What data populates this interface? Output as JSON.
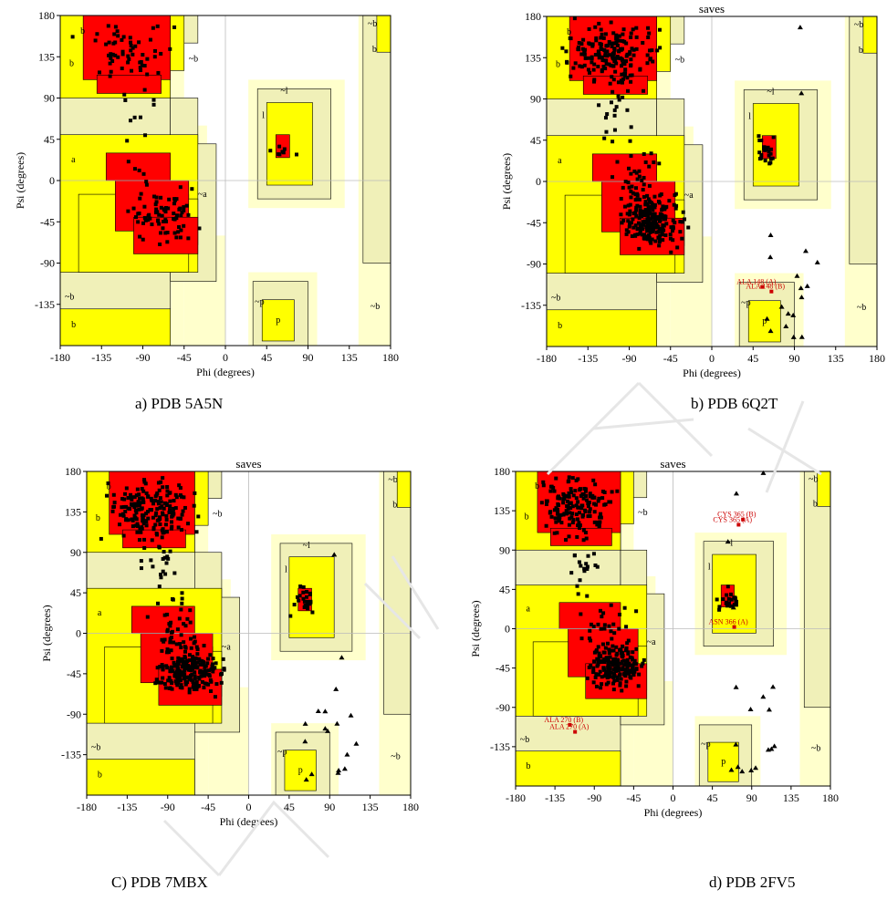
{
  "colors": {
    "core": "#ff0000",
    "allowed": "#ffff00",
    "generous": "#f0f0b8",
    "outer": "#ffffcc",
    "background": "#ffffff",
    "point": "#000000",
    "outlier_label": "#cc0000"
  },
  "region_labels": {
    "b_core": "b",
    "b_allowed": "b",
    "a": "a",
    "a_tilde": "~a",
    "b_tilde": "~b",
    "l": "l",
    "l_tilde": "~l",
    "p": "p",
    "p_tilde": "~p"
  },
  "axis": {
    "xlabel": "Phi (degrees)",
    "ylabel": "Psi (degrees)",
    "xlim": [
      -180,
      180
    ],
    "ylim": [
      -180,
      180
    ],
    "xticks": [
      "-180",
      "-135",
      "-90",
      "-45",
      "0",
      "45",
      "90",
      "135",
      "180"
    ],
    "yticks": [
      "180",
      "135",
      "90",
      "45",
      "0",
      "-45",
      "-90",
      "-135"
    ]
  },
  "chart_data": [
    {
      "type": "scatter",
      "title": "",
      "xlabel": "Phi (degrees)",
      "ylabel": "Psi (degrees)",
      "xlim": [
        -180,
        180
      ],
      "ylim": [
        -180,
        180
      ],
      "header_text": "",
      "caption": "a)   PDB 5A5N",
      "density": 1,
      "outliers": []
    },
    {
      "type": "scatter",
      "title": "",
      "xlabel": "Phi (degrees)",
      "ylabel": "Psi (degrees)",
      "xlim": [
        -180,
        180
      ],
      "ylim": [
        -180,
        180
      ],
      "header_text": "saves",
      "caption": "b) PDB 6Q2T",
      "density": 3,
      "outliers": [
        {
          "x": 55,
          "y": -115,
          "label": "ALA 148 (A)"
        },
        {
          "x": 65,
          "y": -120,
          "label": "ALA 148 (B)"
        }
      ]
    },
    {
      "type": "scatter",
      "title": "",
      "xlabel": "Phi (degrees)",
      "ylabel": "Psi (degrees)",
      "xlim": [
        -180,
        180
      ],
      "ylim": [
        -180,
        180
      ],
      "header_text": "saves",
      "caption": "C) PDB   7MBX",
      "density": 3,
      "outliers": []
    },
    {
      "type": "scatter",
      "title": "",
      "xlabel": "Phi (degrees)",
      "ylabel": "Psi (degrees)",
      "xlim": [
        -180,
        180
      ],
      "ylim": [
        -180,
        180
      ],
      "header_text": "saves",
      "caption": "d) PDB 2FV5",
      "density": 2.5,
      "outliers": [
        {
          "x": 80,
          "y": 125,
          "label": "CYS 365 (B)"
        },
        {
          "x": 75,
          "y": 119,
          "label": "CYS 365 (A)"
        },
        {
          "x": 70,
          "y": 2,
          "label": "ASN 366 (A)"
        },
        {
          "x": -118,
          "y": -110,
          "label": "ALA 270 (B)"
        },
        {
          "x": -112,
          "y": -118,
          "label": "ALA 270 (A)"
        }
      ]
    }
  ]
}
